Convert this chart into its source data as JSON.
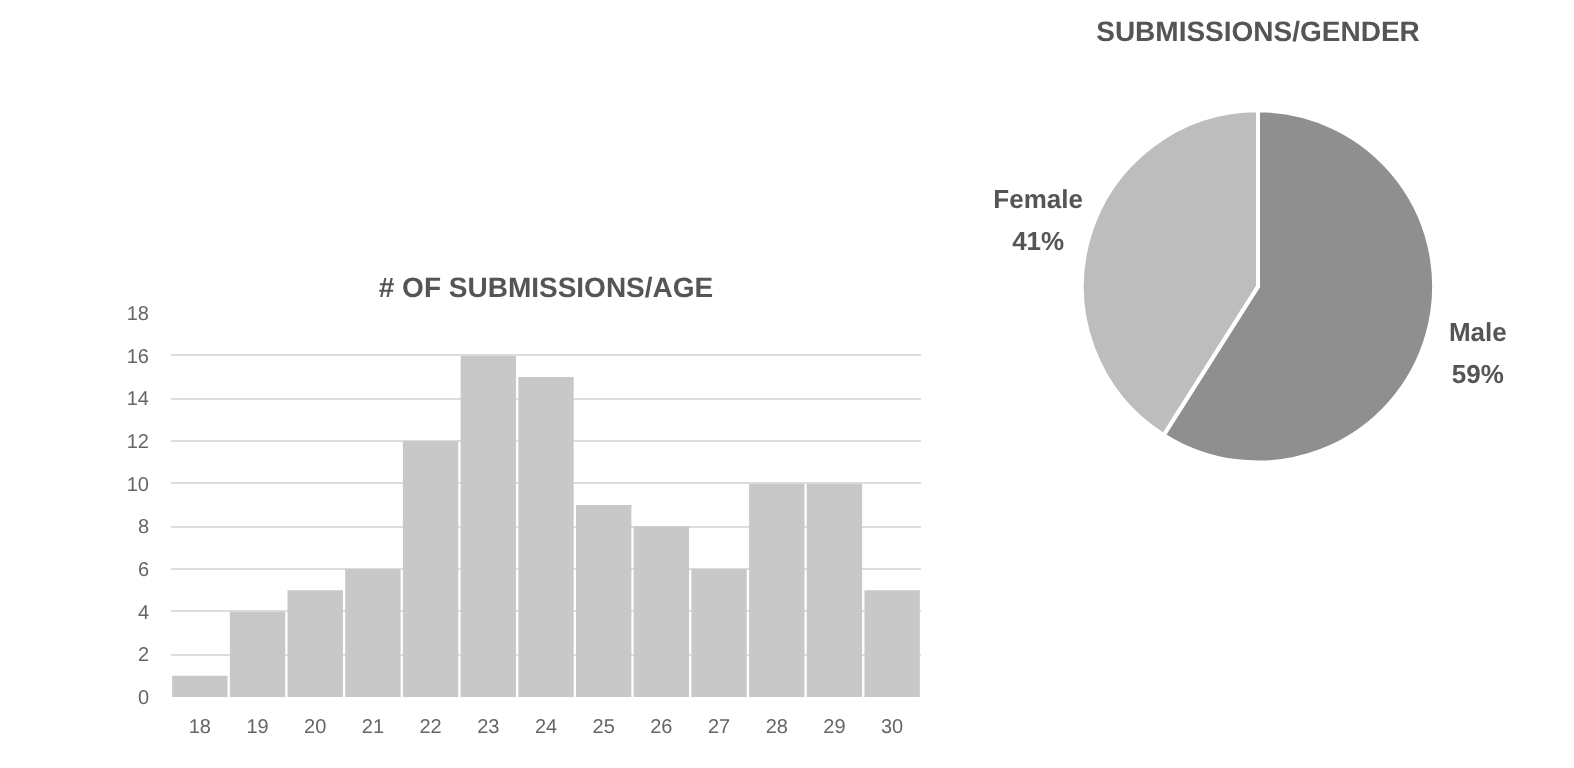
{
  "chart_data": [
    {
      "type": "bar",
      "title": "# OF SUBMISSIONS/AGE",
      "categories": [
        "18",
        "19",
        "20",
        "21",
        "22",
        "23",
        "24",
        "25",
        "26",
        "27",
        "28",
        "29",
        "30"
      ],
      "values": [
        1,
        4,
        5,
        6,
        12,
        16,
        15,
        9,
        8,
        6,
        10,
        10,
        5
      ],
      "color": "#c8c8c8",
      "ylim": [
        0,
        18
      ],
      "yticks": [
        0,
        2,
        4,
        6,
        8,
        10,
        12,
        14,
        16,
        18
      ],
      "grid": "y"
    },
    {
      "type": "pie",
      "title": "SUBMISSIONS/GENDER",
      "categories": [
        "Male",
        "Female"
      ],
      "values": [
        59,
        41
      ],
      "colors": [
        "#8f8f8f",
        "#bdbdbd"
      ],
      "value_labels": [
        "59%",
        "41%"
      ]
    }
  ]
}
